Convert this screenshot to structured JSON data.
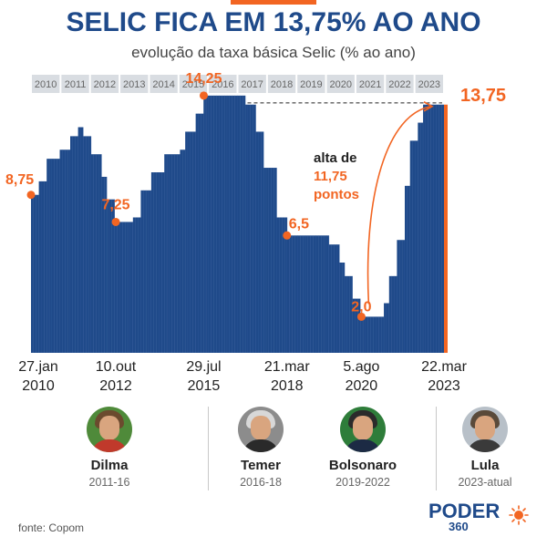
{
  "header": {
    "title": "SELIC FICA EM 13,75% AO ANO",
    "subtitle": "evolução da taxa básica Selic (% ao ano)"
  },
  "chart_data": {
    "type": "bar",
    "title": "SELIC FICA EM 13,75% AO ANO",
    "subtitle": "evolução da taxa básica Selic (% ao ano)",
    "years": [
      "2010",
      "2011",
      "2012",
      "2013",
      "2014",
      "2015",
      "2016",
      "2017",
      "2018",
      "2019",
      "2020",
      "2021",
      "2022",
      "2023"
    ],
    "x_start": 2010.07,
    "x_end": 2023.22,
    "ylim": [
      0,
      15
    ],
    "grid": false,
    "series": [
      {
        "values": [
          [
            2010.07,
            8.75
          ],
          [
            2010.3,
            9.5
          ],
          [
            2010.6,
            10.75
          ],
          [
            2011.0,
            11.25
          ],
          [
            2011.3,
            12.0
          ],
          [
            2011.55,
            12.5
          ],
          [
            2011.7,
            12.0
          ],
          [
            2012.0,
            11.0
          ],
          [
            2012.3,
            9.75
          ],
          [
            2012.5,
            8.5
          ],
          [
            2012.77,
            7.25
          ],
          [
            2013.1,
            7.25
          ],
          [
            2013.3,
            7.5
          ],
          [
            2013.6,
            9.0
          ],
          [
            2013.9,
            10.0
          ],
          [
            2014.3,
            11.0
          ],
          [
            2014.8,
            11.25
          ],
          [
            2015.0,
            12.25
          ],
          [
            2015.3,
            13.25
          ],
          [
            2015.57,
            14.25
          ],
          [
            2016.0,
            14.25
          ],
          [
            2016.6,
            14.25
          ],
          [
            2016.9,
            13.75
          ],
          [
            2017.2,
            12.25
          ],
          [
            2017.5,
            10.25
          ],
          [
            2017.9,
            7.5
          ],
          [
            2018.22,
            6.5
          ],
          [
            2019.3,
            6.5
          ],
          [
            2019.6,
            6.0
          ],
          [
            2019.9,
            5.0
          ],
          [
            2020.1,
            4.25
          ],
          [
            2020.3,
            3.0
          ],
          [
            2020.59,
            2.0
          ],
          [
            2021.17,
            2.0
          ],
          [
            2021.35,
            2.75
          ],
          [
            2021.5,
            4.25
          ],
          [
            2021.75,
            6.25
          ],
          [
            2021.95,
            9.25
          ],
          [
            2022.15,
            11.75
          ],
          [
            2022.4,
            12.75
          ],
          [
            2022.6,
            13.75
          ],
          [
            2023.22,
            13.75
          ]
        ]
      }
    ],
    "highlight_color": "#f26522",
    "bar_color": "#1f4a8a",
    "point_labels": [
      {
        "x": 2010.07,
        "y": 8.75,
        "text": "8,75"
      },
      {
        "x": 2012.77,
        "y": 7.25,
        "text": "7,25"
      },
      {
        "x": 2015.57,
        "y": 14.25,
        "text": "14,25"
      },
      {
        "x": 2018.22,
        "y": 6.5,
        "text": "6,5"
      },
      {
        "x": 2020.59,
        "y": 2.0,
        "text": "2,0"
      },
      {
        "x": 2023.22,
        "y": 13.75,
        "text": "13,75"
      }
    ],
    "x_labels": [
      {
        "x": 2010.07,
        "line1": "27.jan",
        "line2": "2010"
      },
      {
        "x": 2012.77,
        "line1": "10.out",
        "line2": "2012"
      },
      {
        "x": 2015.57,
        "line1": "29.jul",
        "line2": "2015"
      },
      {
        "x": 2018.22,
        "line1": "21.mar",
        "line2": "2018"
      },
      {
        "x": 2020.59,
        "line1": "5.ago",
        "line2": "2020"
      },
      {
        "x": 2023.22,
        "line1": "22.mar",
        "line2": "2023"
      }
    ],
    "annotation": {
      "line1": "alta de",
      "line2": "11,75",
      "line3": "pontos"
    }
  },
  "presidents": [
    {
      "name": "Dilma",
      "years": "2011-16"
    },
    {
      "name": "Temer",
      "years": "2016-18"
    },
    {
      "name": "Bolsonaro",
      "years": "2019-2022"
    },
    {
      "name": "Lula",
      "years": "2023-atual"
    }
  ],
  "footer": {
    "source": "fonte: Copom",
    "logo_word": "PODER",
    "logo_number": "360"
  },
  "colors": {
    "title": "#1f4a8a",
    "bar": "#1f4a8a",
    "accent": "#f26522",
    "year_strip": "#d9dde2"
  }
}
